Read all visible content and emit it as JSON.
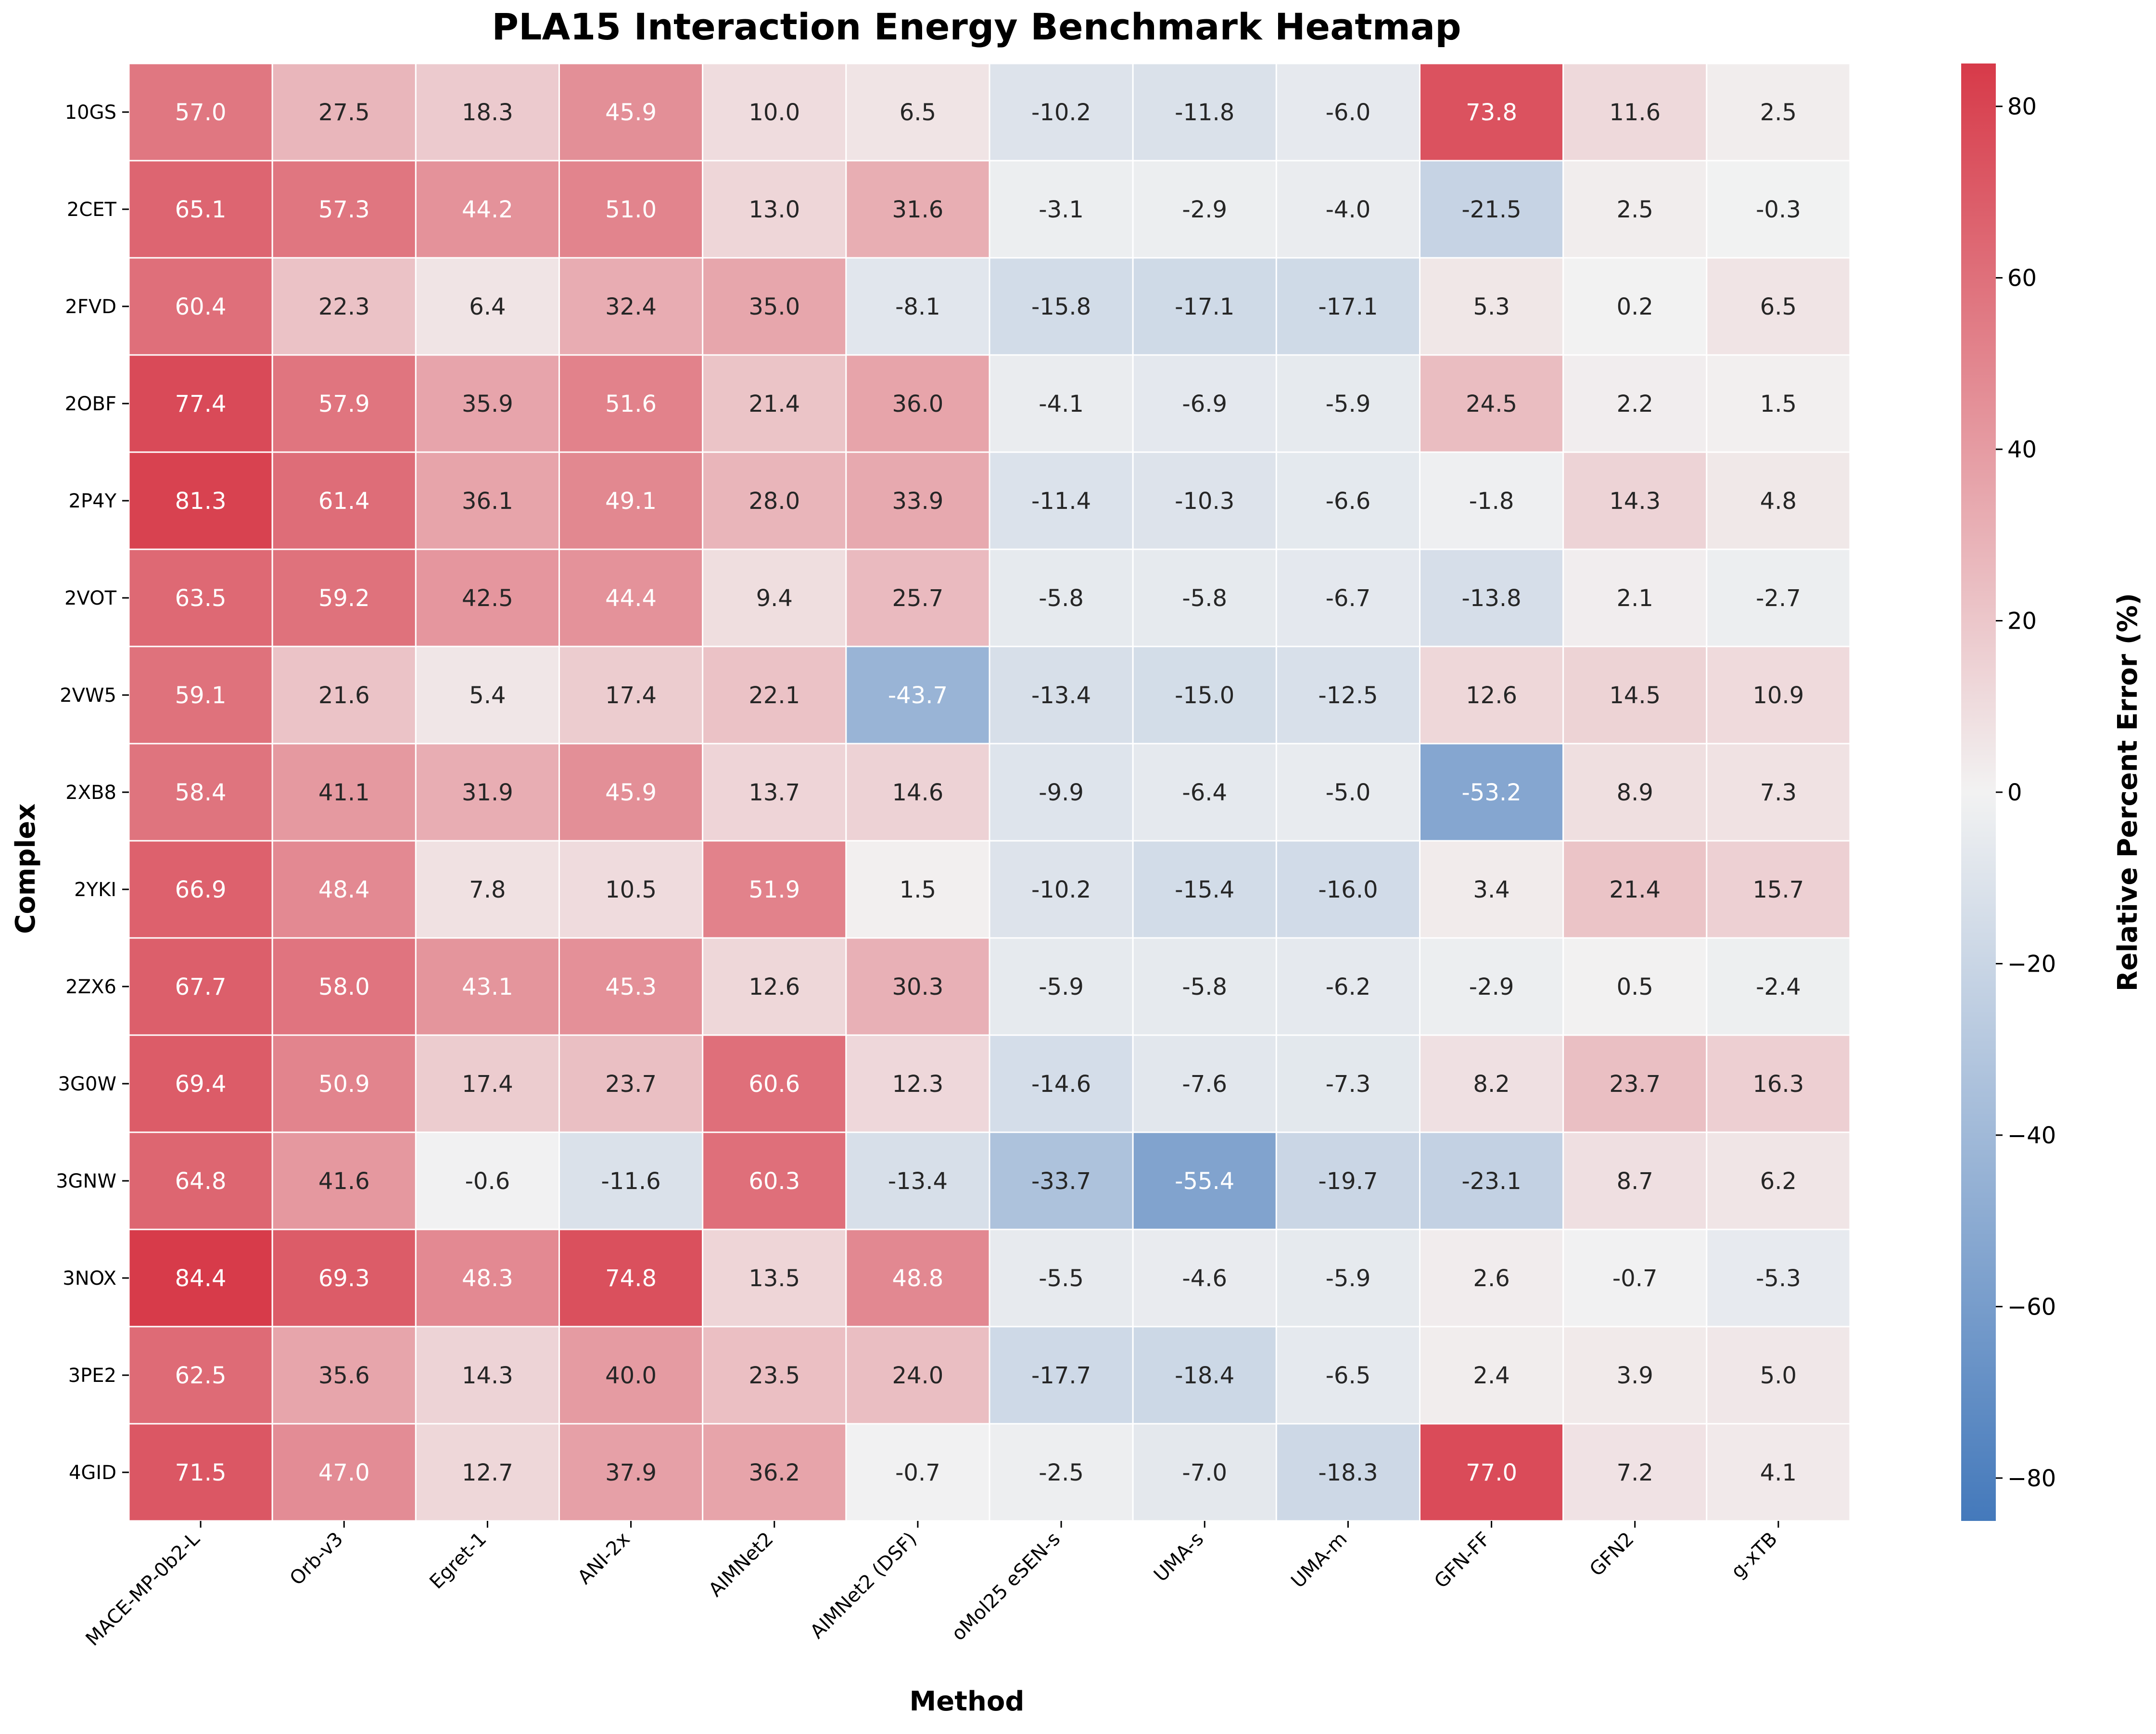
{
  "chart_data": {
    "type": "heatmap",
    "title": "PLA15 Interaction Energy Benchmark Heatmap",
    "xlabel": "Method",
    "ylabel": "Complex",
    "colorbar_label": "Relative Percent Error (%)",
    "x_categories": [
      "MACE-MP-0b2-L",
      "Orb-v3",
      "Egret-1",
      "ANI-2x",
      "AIMNet2",
      "AIMNet2 (DSF)",
      "oMol25 eSEN-s",
      "UMA-s",
      "UMA-m",
      "GFN-FF",
      "GFN2",
      "g-xTB"
    ],
    "y_categories": [
      "10GS",
      "2CET",
      "2FVD",
      "2OBF",
      "2P4Y",
      "2VOT",
      "2VW5",
      "2XB8",
      "2YKI",
      "2ZX6",
      "3G0W",
      "3GNW",
      "3NOX",
      "3PE2",
      "4GID"
    ],
    "values": [
      [
        57.0,
        27.5,
        18.3,
        45.9,
        10.0,
        6.5,
        -10.2,
        -11.8,
        -6.0,
        73.8,
        11.6,
        2.5
      ],
      [
        65.1,
        57.3,
        44.2,
        51.0,
        13.0,
        31.6,
        -3.1,
        -2.9,
        -4.0,
        -21.5,
        2.5,
        -0.3
      ],
      [
        60.4,
        22.3,
        6.4,
        32.4,
        35.0,
        -8.1,
        -15.8,
        -17.1,
        -17.1,
        5.3,
        0.2,
        6.5
      ],
      [
        77.4,
        57.9,
        35.9,
        51.6,
        21.4,
        36.0,
        -4.1,
        -6.9,
        -5.9,
        24.5,
        2.2,
        1.5
      ],
      [
        81.3,
        61.4,
        36.1,
        49.1,
        28.0,
        33.9,
        -11.4,
        -10.3,
        -6.6,
        -1.8,
        14.3,
        4.8
      ],
      [
        63.5,
        59.2,
        42.5,
        44.4,
        9.4,
        25.7,
        -5.8,
        -5.8,
        -6.7,
        -13.8,
        2.1,
        -2.7
      ],
      [
        59.1,
        21.6,
        5.4,
        17.4,
        22.1,
        -43.7,
        -13.4,
        -15.0,
        -12.5,
        12.6,
        14.5,
        10.9
      ],
      [
        58.4,
        41.1,
        31.9,
        45.9,
        13.7,
        14.6,
        -9.9,
        -6.4,
        -5.0,
        -53.2,
        8.9,
        7.3
      ],
      [
        66.9,
        48.4,
        7.8,
        10.5,
        51.9,
        1.5,
        -10.2,
        -15.4,
        -16.0,
        3.4,
        21.4,
        15.7
      ],
      [
        67.7,
        58.0,
        43.1,
        45.3,
        12.6,
        30.3,
        -5.9,
        -5.8,
        -6.2,
        -2.9,
        0.5,
        -2.4
      ],
      [
        69.4,
        50.9,
        17.4,
        23.7,
        60.6,
        12.3,
        -14.6,
        -7.6,
        -7.3,
        8.2,
        23.7,
        16.3
      ],
      [
        64.8,
        41.6,
        -0.6,
        -11.6,
        60.3,
        -13.4,
        -33.7,
        -55.4,
        -19.7,
        -23.1,
        8.7,
        6.2
      ],
      [
        84.4,
        69.3,
        48.3,
        74.8,
        13.5,
        48.8,
        -5.5,
        -4.6,
        -5.9,
        2.6,
        -0.7,
        -5.3
      ],
      [
        62.5,
        35.6,
        14.3,
        40.0,
        23.5,
        24.0,
        -17.7,
        -18.4,
        -6.5,
        2.4,
        3.9,
        5.0
      ],
      [
        71.5,
        47.0,
        12.7,
        37.9,
        36.2,
        -0.7,
        -2.5,
        -7.0,
        -18.3,
        77.0,
        7.2,
        4.1
      ]
    ],
    "value_range": [
      -85,
      85
    ],
    "colorbar_ticks": [
      80,
      60,
      40,
      20,
      0,
      -20,
      -40,
      -60,
      -80
    ],
    "colormap": {
      "low": "#4479bb",
      "mid": "#f2f2f2",
      "high": "#d73a49"
    },
    "cell_border_color": "#ffffff",
    "data_label_dark_color": "#262626",
    "data_label_light_color": "#ffffff",
    "grid": false
  }
}
